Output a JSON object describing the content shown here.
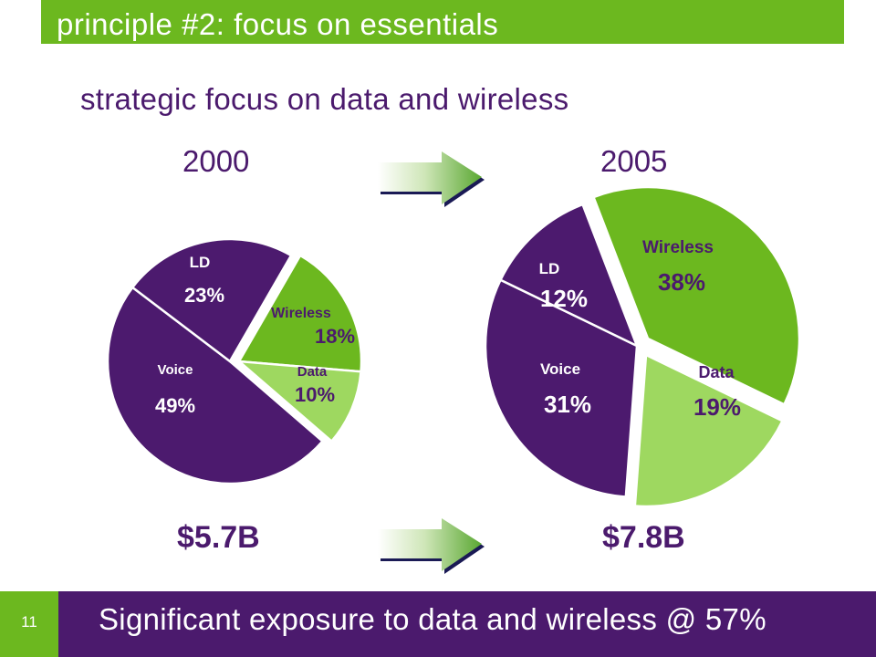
{
  "header": {
    "title": "principle #2: focus on essentials"
  },
  "slide": {
    "subtitle": "strategic focus on data and wireless",
    "takeaway": "Significant exposure to data and wireless @ 57%",
    "page_number": "11"
  },
  "colors": {
    "brand_green": "#6cb81f",
    "brand_purple": "#4b1a6d",
    "light_green": "#9ed860",
    "pie_purple": "#4c1a6e"
  },
  "chart_data": [
    {
      "type": "pie",
      "title": "2000",
      "total_label": "$5.7B",
      "slices": [
        {
          "label": "Wireless",
          "value": 18,
          "value_label": "18%",
          "color": "#6cb81f"
        },
        {
          "label": "Data",
          "value": 10,
          "value_label": "10%",
          "color": "#9ed860"
        },
        {
          "label": "Voice",
          "value": 49,
          "value_label": "49%",
          "color": "#4c1a6e"
        },
        {
          "label": "LD",
          "value": 23,
          "value_label": "23%",
          "color": "#4c1a6e"
        }
      ]
    },
    {
      "type": "pie",
      "title": "2005",
      "total_label": "$7.8B",
      "slices": [
        {
          "label": "Wireless",
          "value": 38,
          "value_label": "38%",
          "color": "#6cb81f"
        },
        {
          "label": "Data",
          "value": 19,
          "value_label": "19%",
          "color": "#9ed860"
        },
        {
          "label": "Voice",
          "value": 31,
          "value_label": "31%",
          "color": "#4c1a6e"
        },
        {
          "label": "LD",
          "value": 12,
          "value_label": "12%",
          "color": "#4c1a6e"
        }
      ]
    }
  ]
}
